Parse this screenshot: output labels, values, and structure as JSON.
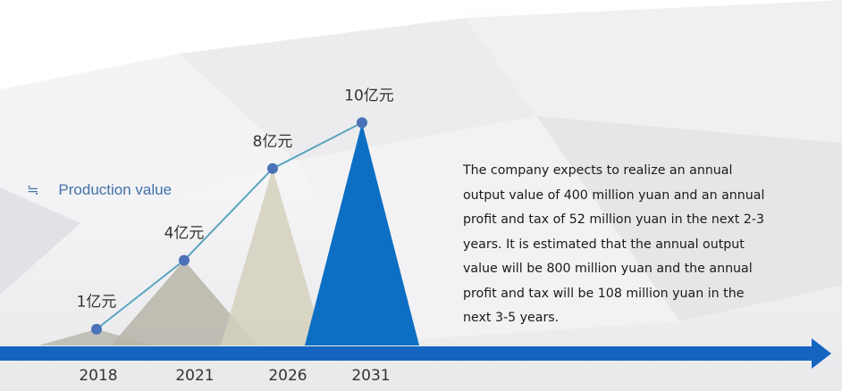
{
  "chart_data": {
    "type": "line",
    "categories": [
      "2018",
      "2021",
      "2026",
      "2031"
    ],
    "series": [
      {
        "name": "Production value",
        "values": [
          1,
          4,
          8,
          10
        ]
      }
    ],
    "value_labels": [
      "1亿元",
      "4亿元",
      "8亿元",
      "10亿元"
    ],
    "ylim": [
      0,
      10
    ],
    "grid": false,
    "legend": "left",
    "colors": {
      "line": "#5aa5c0",
      "marker": "#4a72b8",
      "peaks": [
        "#b8b8ae",
        "#b7b4a8",
        "#d4d0bd",
        "#0d6fc4"
      ],
      "axis": "#1565c0"
    }
  },
  "legend": {
    "label": "Production value",
    "icon": "approx-equal-icon"
  },
  "description": "The company expects to realize an annual output value of 400 million yuan and an annual profit and tax of 52 million yuan in the next 2-3 years. It is estimated that the annual output value will be 800 million yuan and the annual profit and tax will be 108 million yuan in the next 3-5 years."
}
